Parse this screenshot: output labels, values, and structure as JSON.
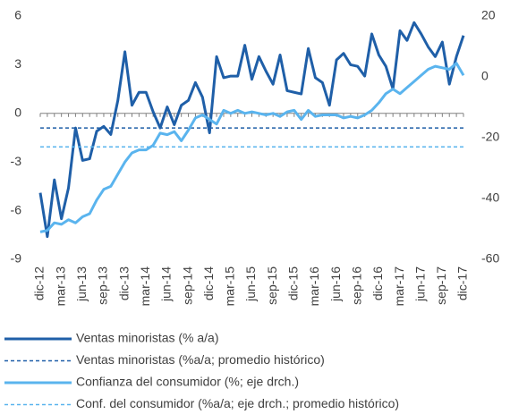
{
  "chart_data": {
    "type": "line",
    "categories": [
      "dic-12",
      null,
      null,
      "mar-13",
      null,
      null,
      "jun-13",
      null,
      null,
      "sep-13",
      null,
      null,
      "dic-13",
      null,
      null,
      "mar-14",
      null,
      null,
      "jun-14",
      null,
      null,
      "sep-14",
      null,
      null,
      "dic-14",
      null,
      null,
      "mar-15",
      null,
      null,
      "jun-15",
      null,
      null,
      "sep-15",
      null,
      null,
      "dic-15",
      null,
      null,
      "mar-16",
      null,
      null,
      "jun-16",
      null,
      null,
      "sep-16",
      null,
      null,
      "dic-16",
      null,
      null,
      "mar-17",
      null,
      null,
      "jun-17",
      null,
      null,
      "sep-17",
      null,
      null,
      "dic-17"
    ],
    "ylim": [
      -9,
      6
    ],
    "yticks": [
      -9,
      -6,
      -3,
      0,
      3,
      6
    ],
    "y2lim": [
      -60,
      20
    ],
    "y2ticks": [
      -60,
      -40,
      -20,
      0,
      20
    ],
    "series": [
      {
        "name": "Ventas minoristas (% a/a)",
        "color": "#1f5fa8",
        "style": "solid",
        "values": [
          -4.9,
          -7.6,
          -4.1,
          -6.5,
          -4.6,
          -0.9,
          -2.9,
          -2.8,
          -1.1,
          -0.8,
          -1.3,
          0.8,
          3.8,
          0.5,
          1.3,
          1.3,
          0.1,
          -0.9,
          0.4,
          -0.7,
          0.5,
          0.8,
          1.9,
          1.0,
          -1.2,
          3.5,
          2.2,
          2.3,
          2.3,
          4.2,
          2.1,
          3.5,
          2.6,
          1.8,
          3.6,
          1.4,
          1.3,
          1.2,
          4.0,
          2.2,
          1.9,
          0.5,
          3.3,
          3.7,
          3.0,
          2.9,
          2.3,
          4.9,
          3.6,
          2.9,
          1.5,
          5.1,
          4.5,
          5.6,
          4.9,
          4.1,
          3.5,
          4.4,
          1.8,
          3.5,
          4.8
        ]
      },
      {
        "name": "Ventas minoristas (%a/a; promedio histórico)",
        "color": "#1f5fa8",
        "style": "dashed",
        "value": -0.9
      },
      {
        "name": "Confianza del consumidor (%; eje drch.)",
        "color": "#5ab4ee",
        "style": "solid",
        "axis": "y2",
        "values": [
          -51,
          -50.5,
          -48,
          -48.5,
          -47,
          -48,
          -46,
          -45,
          -40.5,
          -37,
          -36,
          -32,
          -28,
          -25,
          -24,
          -24,
          -22.5,
          -18.5,
          -19,
          -18,
          -21,
          -17.5,
          -13.5,
          -12.5,
          -14,
          -15.5,
          -11,
          -12,
          -11,
          -12,
          -11.5,
          -12,
          -12.5,
          -12,
          -13,
          -11.5,
          -11,
          -14,
          -11,
          -13,
          -12.5,
          -12.5,
          -12.5,
          -13.5,
          -13,
          -13.5,
          -12.5,
          -11,
          -8.5,
          -5.5,
          -4,
          -5.5,
          -3.5,
          -1.5,
          0.5,
          2.5,
          3.5,
          3,
          2.5,
          4.5,
          0.5
        ]
      },
      {
        "name": "Conf. del consumidor (%a/a; eje drch.; promedio histórico)",
        "color": "#5ab4ee",
        "style": "dashed",
        "axis": "y2",
        "value": -23
      }
    ]
  }
}
